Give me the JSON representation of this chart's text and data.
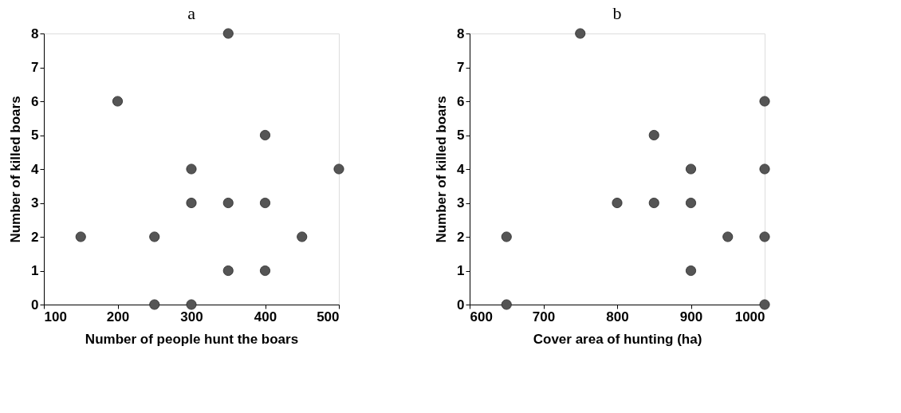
{
  "chart_data": [
    {
      "type": "scatter",
      "title": "a",
      "xlabel": "Number of people hunt the boars",
      "ylabel": "Number of killed boars",
      "x": [
        150,
        200,
        250,
        250,
        300,
        300,
        300,
        350,
        350,
        350,
        400,
        400,
        400,
        450,
        500
      ],
      "series": [
        {
          "color": "#555555",
          "values": [
            2,
            6,
            2,
            0,
            0,
            3,
            4,
            8,
            3,
            1,
            5,
            3,
            1,
            2,
            4
          ]
        }
      ],
      "xlim": [
        100,
        500
      ],
      "xticks": [
        100,
        200,
        300,
        400,
        500
      ],
      "ylim": [
        0,
        8
      ],
      "yticks": [
        0,
        1,
        2,
        3,
        4,
        5,
        6,
        7,
        8
      ],
      "marker": "circle",
      "grid": false
    },
    {
      "type": "scatter",
      "title": "b",
      "xlabel": "Cover area of hunting (ha)",
      "ylabel": "Number of killed boars",
      "x": [
        650,
        650,
        750,
        800,
        850,
        850,
        900,
        900,
        900,
        950,
        1000,
        1000,
        1000,
        1000
      ],
      "series": [
        {
          "color": "#555555",
          "values": [
            2,
            0,
            8,
            3,
            3,
            5,
            4,
            3,
            1,
            2,
            6,
            4,
            2,
            0
          ]
        }
      ],
      "xlim": [
        600,
        1000
      ],
      "xticks": [
        600,
        700,
        800,
        900,
        1000
      ],
      "ylim": [
        0,
        8
      ],
      "yticks": [
        0,
        1,
        2,
        3,
        4,
        5,
        6,
        7,
        8
      ],
      "marker": "circle",
      "grid": false
    }
  ]
}
